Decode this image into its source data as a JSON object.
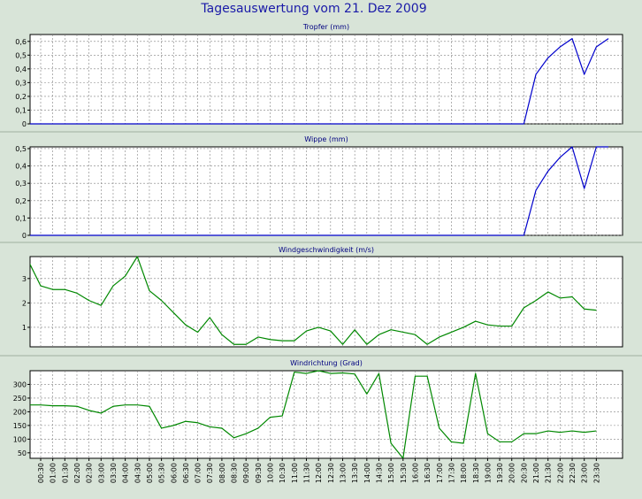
{
  "title": "Tagesauswertung vom 21. Dez 2009",
  "colors": {
    "background": "#d8e4d8",
    "plot": "#ffffff",
    "title": "#1a1aa8",
    "blue_line": "#0000cc",
    "green_line": "#008800",
    "grid": "#808080"
  },
  "x_labels": [
    "00:30",
    "01:00",
    "01:30",
    "02:00",
    "02:30",
    "03:00",
    "03:30",
    "04:00",
    "04:30",
    "05:00",
    "05:30",
    "06:00",
    "06:30",
    "07:00",
    "07:30",
    "08:00",
    "08:30",
    "09:00",
    "09:30",
    "10:00",
    "10:30",
    "11:00",
    "11:30",
    "12:00",
    "12:30",
    "13:00",
    "13:30",
    "14:00",
    "14:30",
    "15:00",
    "15:30",
    "16:00",
    "16:30",
    "17:00",
    "17:30",
    "18:00",
    "18:30",
    "19:00",
    "19:30",
    "20:00",
    "20:30",
    "21:00",
    "21:30",
    "22:00",
    "22:30",
    "23:00",
    "23:30"
  ],
  "chart_data": [
    {
      "type": "line",
      "title": "Tropfer (mm)",
      "color": "#0000cc",
      "grid": true,
      "ylim": [
        0,
        0.65
      ],
      "yticks": [
        0,
        0.1,
        0.2,
        0.3,
        0.4,
        0.5,
        0.6
      ],
      "ytick_labels": [
        "0",
        "0,1",
        "0,2",
        "0,3",
        "0,4",
        "0,5",
        "0,6"
      ],
      "values": [
        0,
        0,
        0,
        0,
        0,
        0,
        0,
        0,
        0,
        0,
        0,
        0,
        0,
        0,
        0,
        0,
        0,
        0,
        0,
        0,
        0,
        0,
        0,
        0,
        0,
        0,
        0,
        0,
        0,
        0,
        0,
        0,
        0,
        0,
        0,
        0,
        0,
        0,
        0,
        0,
        0,
        0,
        0.36,
        0.48,
        0.56,
        0.62,
        0.36,
        0.56,
        0.62
      ]
    },
    {
      "type": "line",
      "title": "Wippe (mm)",
      "color": "#0000cc",
      "grid": true,
      "ylim": [
        0,
        0.51
      ],
      "yticks": [
        0,
        0.1,
        0.2,
        0.3,
        0.4,
        0.5
      ],
      "ytick_labels": [
        "0",
        "0,1",
        "0,2",
        "0,3",
        "0,4",
        "0,5"
      ],
      "values": [
        0,
        0,
        0,
        0,
        0,
        0,
        0,
        0,
        0,
        0,
        0,
        0,
        0,
        0,
        0,
        0,
        0,
        0,
        0,
        0,
        0,
        0,
        0,
        0,
        0,
        0,
        0,
        0,
        0,
        0,
        0,
        0,
        0,
        0,
        0,
        0,
        0,
        0,
        0,
        0,
        0,
        0,
        0.26,
        0.37,
        0.45,
        0.51,
        0.27,
        0.51,
        0.51
      ]
    },
    {
      "type": "line",
      "title": "Windgeschwindigkeit (m/s)",
      "color": "#008800",
      "grid": true,
      "ylim": [
        0.2,
        3.9
      ],
      "yticks": [
        1,
        2,
        3
      ],
      "ytick_labels": [
        "1",
        "2",
        "3"
      ],
      "values": [
        3.7,
        2.7,
        2.55,
        2.55,
        2.4,
        2.1,
        1.9,
        2.7,
        3.1,
        3.9,
        2.5,
        2.1,
        1.6,
        1.1,
        0.8,
        1.4,
        0.7,
        0.3,
        0.3,
        0.6,
        0.5,
        0.45,
        0.45,
        0.85,
        1.0,
        0.85,
        0.3,
        0.9,
        0.3,
        0.7,
        0.9,
        0.8,
        0.7,
        0.3,
        0.6,
        0.8,
        1.0,
        1.25,
        1.1,
        1.05,
        1.05,
        1.8,
        2.1,
        2.45,
        2.2,
        2.25,
        1.75,
        1.7
      ]
    },
    {
      "type": "line",
      "title": "Windrichtung (Grad)",
      "color": "#008800",
      "grid": true,
      "ylim": [
        30,
        350
      ],
      "yticks": [
        50,
        100,
        150,
        200,
        250,
        300
      ],
      "ytick_labels": [
        "50",
        "100",
        "150",
        "200",
        "250",
        "300"
      ],
      "values": [
        225,
        225,
        222,
        222,
        220,
        205,
        195,
        220,
        225,
        225,
        220,
        140,
        150,
        165,
        160,
        145,
        140,
        105,
        120,
        140,
        180,
        185,
        345,
        340,
        350,
        340,
        342,
        338,
        265,
        340,
        85,
        30,
        330,
        330,
        140,
        90,
        85,
        340,
        120,
        90,
        90,
        120,
        120,
        130,
        125,
        130,
        125,
        130
      ]
    }
  ]
}
